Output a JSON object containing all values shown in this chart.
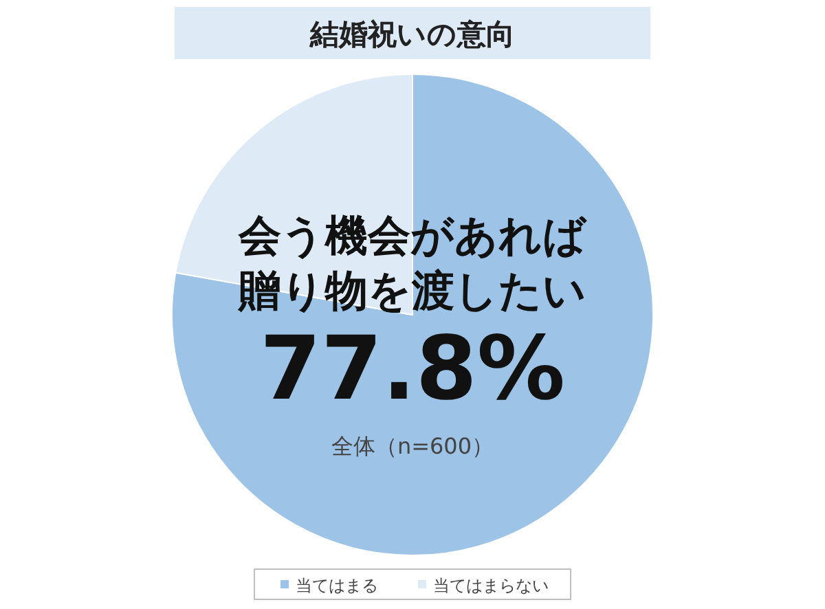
{
  "chart_data": {
    "type": "pie",
    "title": "結婚祝いの意向",
    "categories": [
      "当てはまる",
      "当てはまらない"
    ],
    "values": [
      77.8,
      22.2
    ],
    "colors": [
      "#9dc3e6",
      "#deebf7"
    ],
    "annotations": [
      "会う機会があれば",
      "贈り物を渡したい",
      "77.8%",
      "全体（n=600）"
    ],
    "legend": "bottom"
  }
}
